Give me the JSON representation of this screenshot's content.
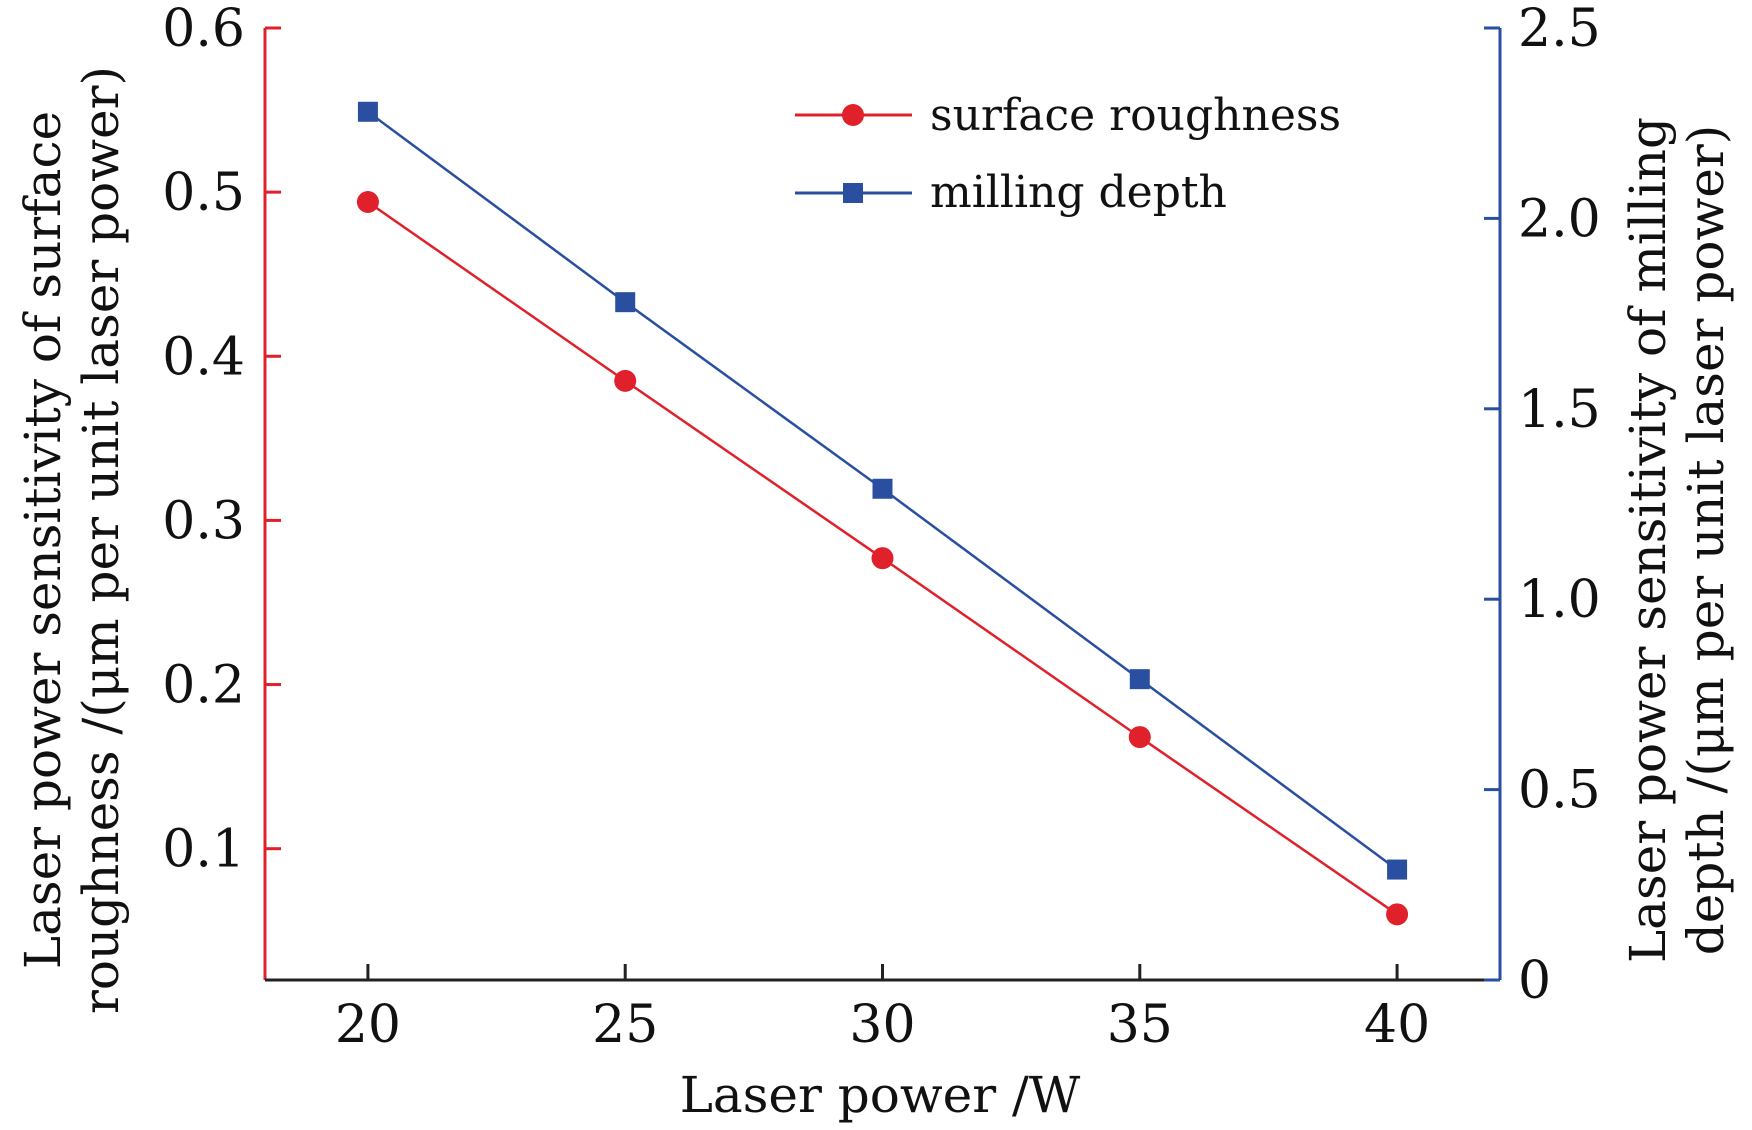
{
  "chart_data": {
    "type": "line",
    "title": "",
    "xlabel": "Laser power /W",
    "ylabel_left": [
      "Laser power sensitivity of surface",
      "roughness /(μm per unit laser power)"
    ],
    "ylabel_right": [
      "Laser power sensitivity of milling",
      "depth /(μm per unit laser power)"
    ],
    "x": [
      20,
      25,
      30,
      35,
      40
    ],
    "xlim": [
      18,
      42
    ],
    "ylim_left": [
      0.02,
      0.6
    ],
    "ylim_right": [
      0,
      2.5
    ],
    "x_ticks": [
      "20",
      "25",
      "30",
      "35",
      "40"
    ],
    "y_left_ticks": [
      "0.1",
      "0.2",
      "0.3",
      "0.4",
      "0.5",
      "0.6"
    ],
    "y_right_ticks": [
      "0",
      "0.5",
      "1.0",
      "1.5",
      "2.0",
      "2.5"
    ],
    "legend_position": "top-right",
    "series": [
      {
        "name": "surface roughness",
        "axis": "left",
        "marker": "circle",
        "color": "#e0202a",
        "values": [
          0.494,
          0.385,
          0.277,
          0.168,
          0.06
        ]
      },
      {
        "name": "milling depth",
        "axis": "right",
        "marker": "square",
        "color": "#2a4fa0",
        "values": [
          2.28,
          1.78,
          1.29,
          0.79,
          0.29
        ]
      }
    ],
    "axis_colors": {
      "left": "#e0202a",
      "right": "#2a4fa0",
      "bottom": "#222222"
    }
  }
}
